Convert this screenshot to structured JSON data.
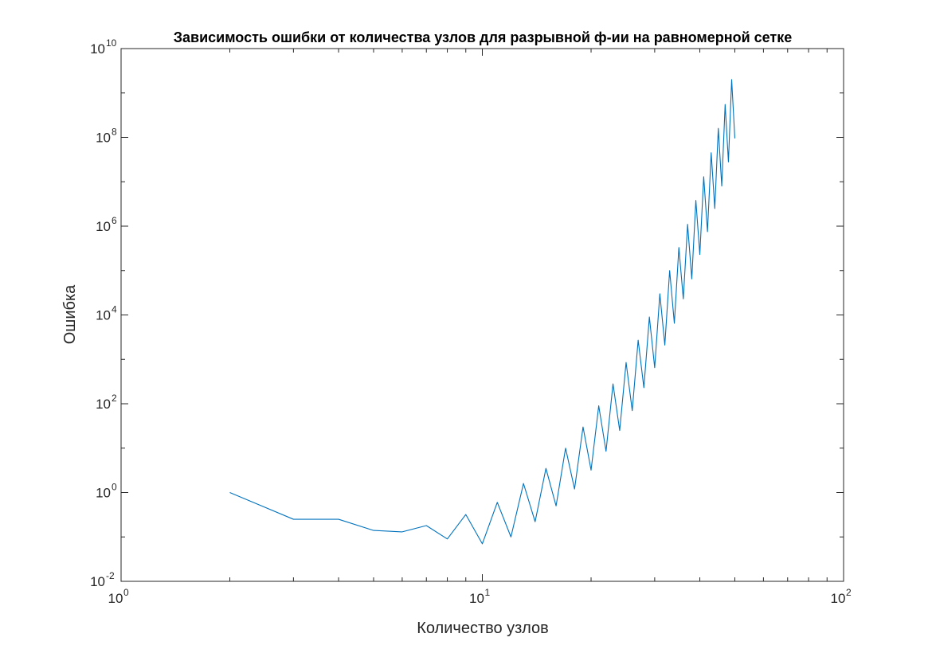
{
  "chart_data": {
    "type": "line",
    "title": "Зависимость ошибки от количества узлов для разрывной ф-ии на равномерной сетке",
    "xlabel": "Количество узлов",
    "ylabel": "Ошибка",
    "x_scale": "log",
    "y_scale": "log",
    "xlim": [
      1,
      100
    ],
    "ylim": [
      0.01,
      10000000000
    ],
    "x_ticks": [
      {
        "base": "10",
        "exp": "0",
        "value": 1
      },
      {
        "base": "10",
        "exp": "1",
        "value": 10
      },
      {
        "base": "10",
        "exp": "2",
        "value": 100
      }
    ],
    "y_ticks": [
      {
        "base": "10",
        "exp": "-2",
        "value": 0.01
      },
      {
        "base": "10",
        "exp": "0",
        "value": 1
      },
      {
        "base": "10",
        "exp": "2",
        "value": 100
      },
      {
        "base": "10",
        "exp": "4",
        "value": 10000
      },
      {
        "base": "10",
        "exp": "6",
        "value": 1000000
      },
      {
        "base": "10",
        "exp": "8",
        "value": 100000000
      },
      {
        "base": "10",
        "exp": "10",
        "value": 10000000000
      }
    ],
    "grid": false,
    "line_color": "#0072BD",
    "series": [
      {
        "x": [
          2,
          3,
          4,
          5,
          6,
          7,
          8,
          9,
          10,
          11,
          12,
          13,
          14,
          15,
          16,
          17,
          18,
          19,
          20,
          21,
          22,
          23,
          24,
          25,
          26,
          27,
          28,
          29,
          30,
          31,
          32,
          33,
          34,
          35,
          36,
          37,
          38,
          39,
          40,
          41,
          42,
          43,
          44,
          45,
          46,
          47,
          48,
          49,
          50
        ],
        "y": [
          1.0,
          0.25,
          0.25,
          0.14,
          0.13,
          0.18,
          0.09,
          0.32,
          0.07,
          0.6,
          0.1,
          1.6,
          0.22,
          3.5,
          0.5,
          10,
          1.2,
          30,
          3.2,
          90,
          8.5,
          280,
          25,
          850,
          70,
          2700,
          230,
          9000,
          650,
          30000,
          2100,
          100000,
          6500,
          330000,
          23000,
          1100000,
          65000,
          3800000,
          230000,
          13000000,
          750000,
          45000000,
          2500000,
          160000000,
          8000000,
          550000000,
          28000000,
          2000000000,
          95000000
        ]
      }
    ]
  }
}
